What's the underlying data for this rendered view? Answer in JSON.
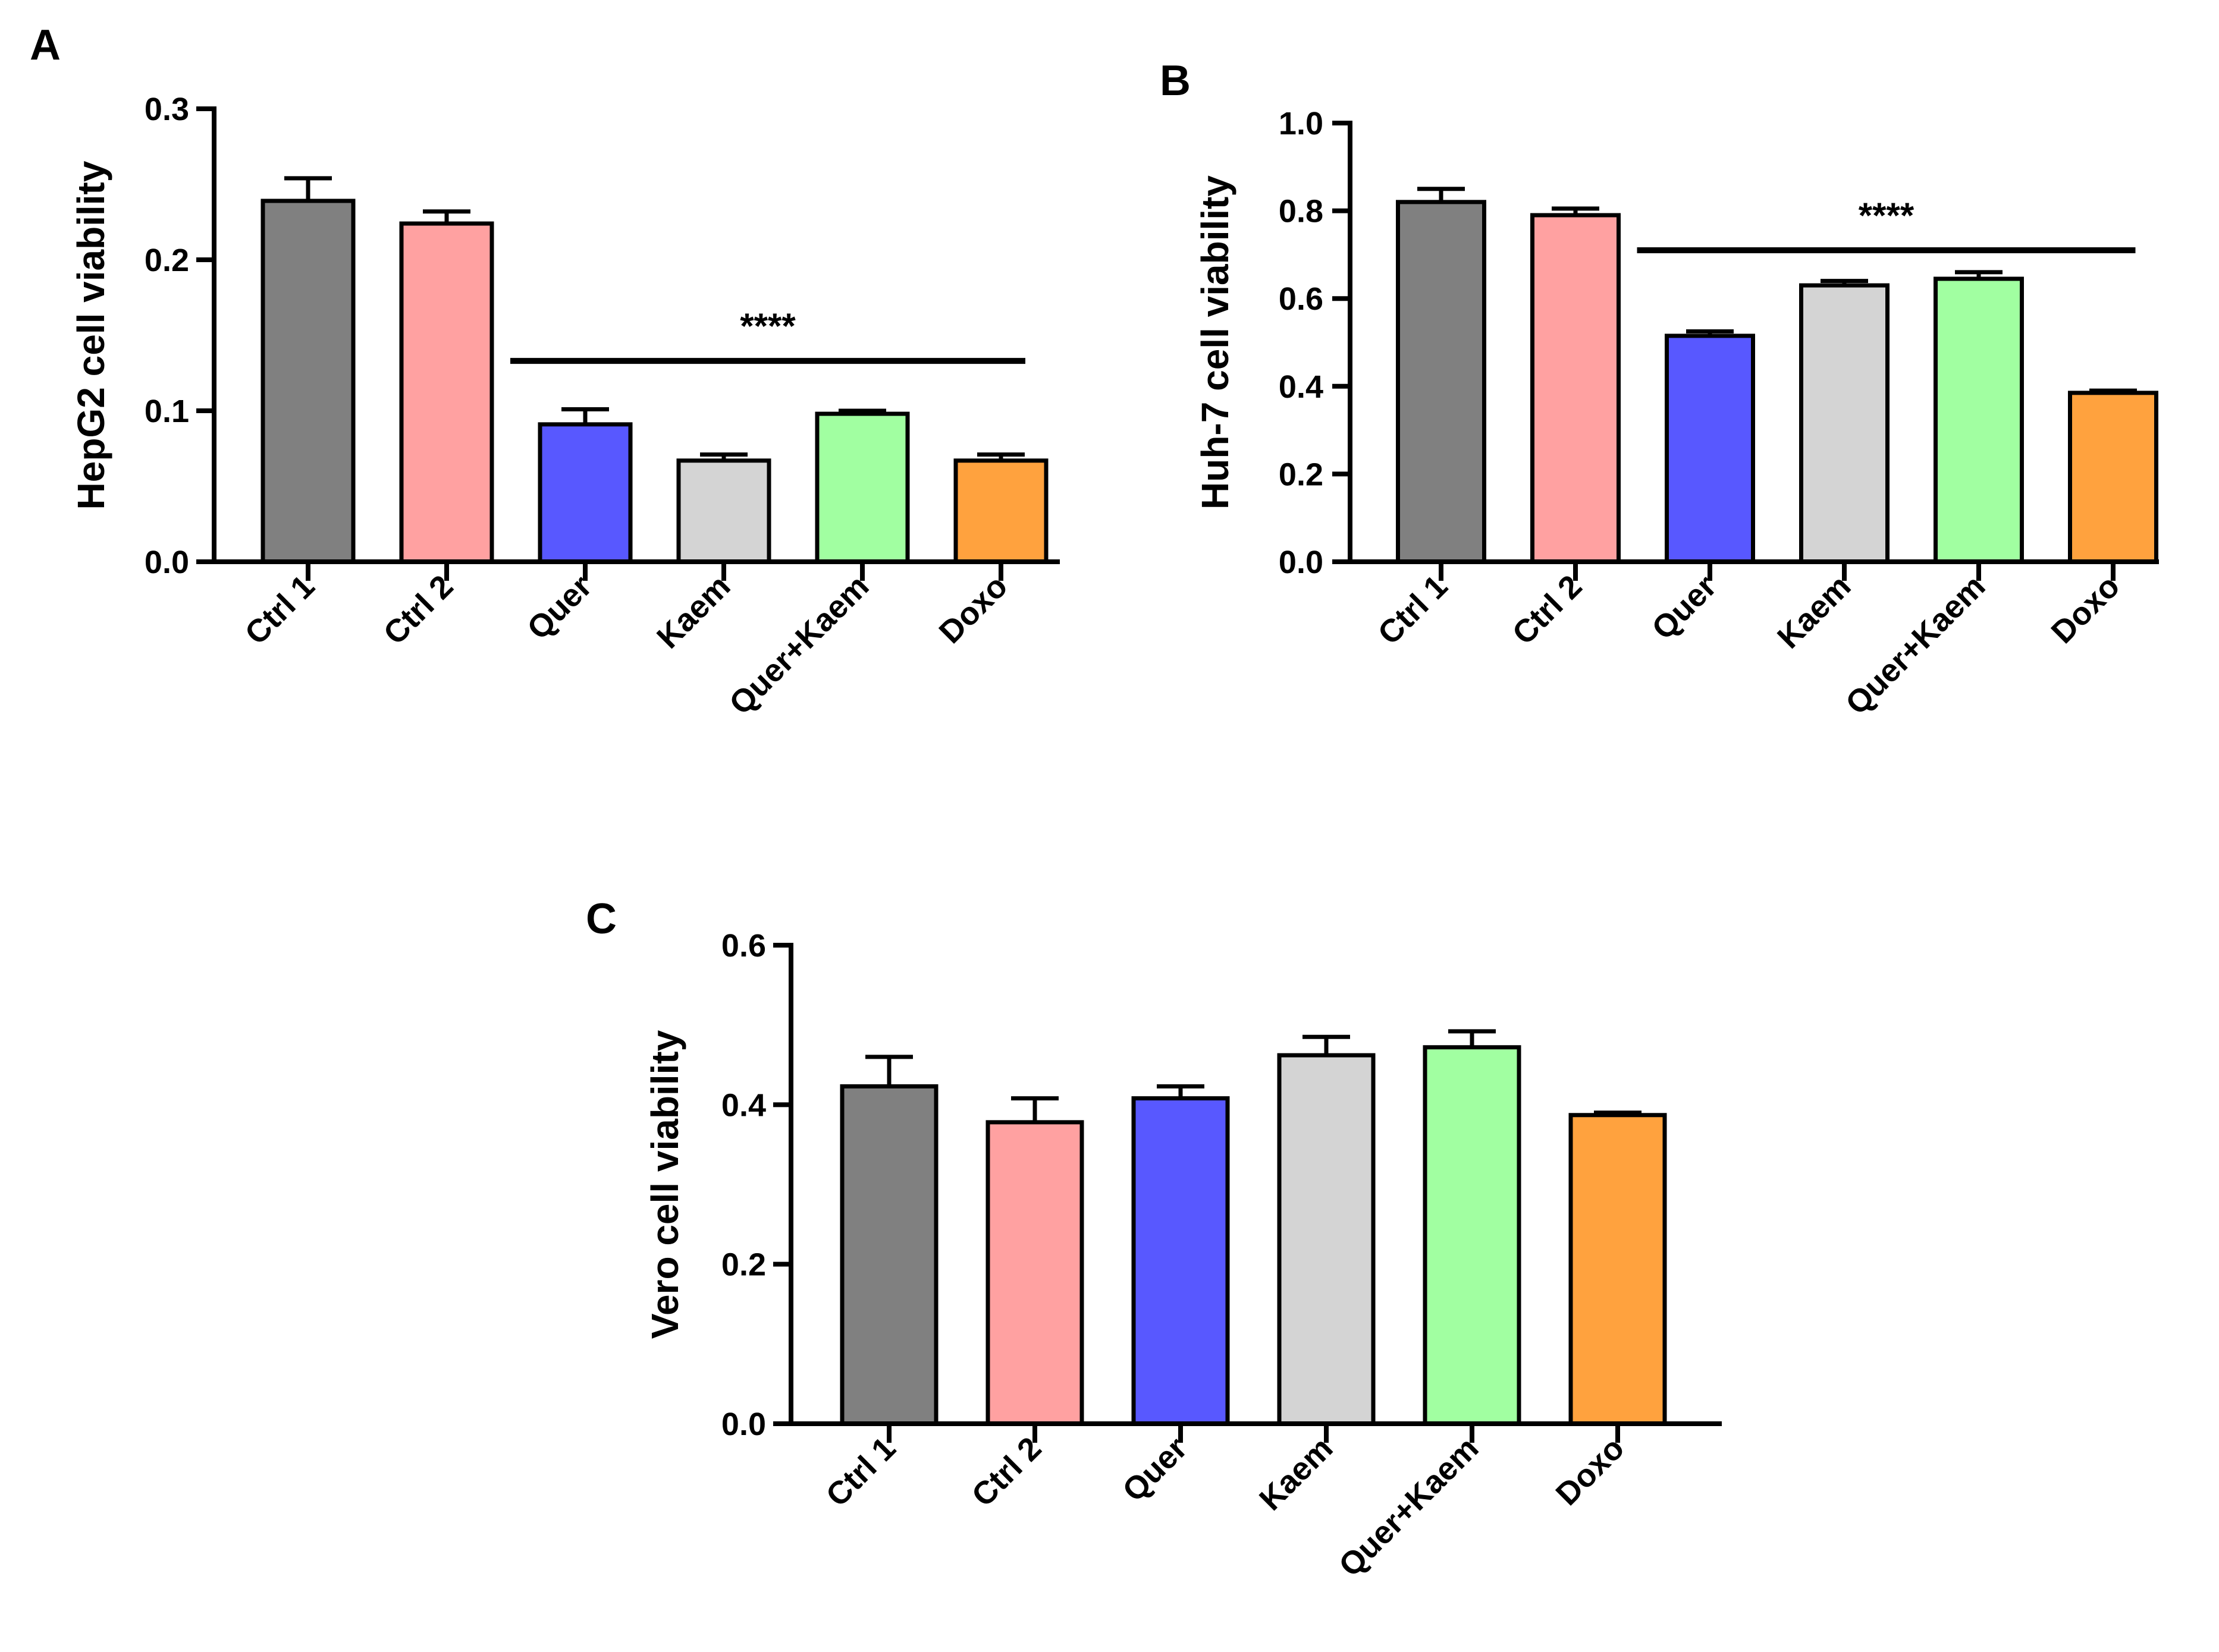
{
  "chart_data": [
    {
      "type": "bar",
      "panel_label": "A",
      "ylabel": "HepG2 cell viability",
      "ylim": [
        0,
        0.3
      ],
      "yticks": [
        0.0,
        0.1,
        0.2,
        0.3
      ],
      "ytick_labels": [
        "0.0",
        "0.1",
        "0.2",
        "0.3"
      ],
      "categories": [
        "Ctrl 1",
        "Ctrl 2",
        "Quer",
        "Kaem",
        "Quer+Kaem",
        "Doxo"
      ],
      "values": [
        0.239,
        0.224,
        0.091,
        0.067,
        0.098,
        0.067
      ],
      "errors": [
        0.015,
        0.008,
        0.01,
        0.004,
        0.002,
        0.004
      ],
      "colors": [
        "#808080",
        "#FFA1A1",
        "#5858FF",
        "#D4D4D4",
        "#A1FFA1",
        "#FFA23E"
      ],
      "significance": {
        "label": "****",
        "from": "Quer",
        "to": "Doxo",
        "y": 0.133
      }
    },
    {
      "type": "bar",
      "panel_label": "B",
      "ylabel": "Huh-7 cell viability",
      "ylim": [
        0,
        1.0
      ],
      "yticks": [
        0.0,
        0.2,
        0.4,
        0.6,
        0.8,
        1.0
      ],
      "ytick_labels": [
        "0.0",
        "0.2",
        "0.4",
        "0.6",
        "0.8",
        "1.0"
      ],
      "categories": [
        "Ctrl 1",
        "Ctrl 2",
        "Quer",
        "Kaem",
        "Quer+Kaem",
        "Doxo"
      ],
      "values": [
        0.82,
        0.79,
        0.515,
        0.63,
        0.645,
        0.385
      ],
      "errors": [
        0.03,
        0.015,
        0.01,
        0.01,
        0.015,
        0.005
      ],
      "colors": [
        "#808080",
        "#FFA1A1",
        "#5858FF",
        "#D4D4D4",
        "#A1FFA1",
        "#FFA23E"
      ],
      "significance": {
        "label": "****",
        "from": "Quer",
        "to": "Doxo",
        "y": 0.71
      }
    },
    {
      "type": "bar",
      "panel_label": "C",
      "ylabel": "Vero cell viability",
      "ylim": [
        0,
        0.6
      ],
      "yticks": [
        0.0,
        0.2,
        0.4,
        0.6
      ],
      "ytick_labels": [
        "0.0",
        "0.2",
        "0.4",
        "0.6"
      ],
      "categories": [
        "Ctrl 1",
        "Ctrl 2",
        "Quer",
        "Kaem",
        "Quer+Kaem",
        "Doxo"
      ],
      "values": [
        0.423,
        0.378,
        0.408,
        0.462,
        0.472,
        0.387
      ],
      "errors": [
        0.037,
        0.03,
        0.015,
        0.023,
        0.02,
        0.003
      ],
      "colors": [
        "#808080",
        "#FFA1A1",
        "#5858FF",
        "#D4D4D4",
        "#A1FFA1",
        "#FFA23E"
      ],
      "significance": null
    }
  ]
}
